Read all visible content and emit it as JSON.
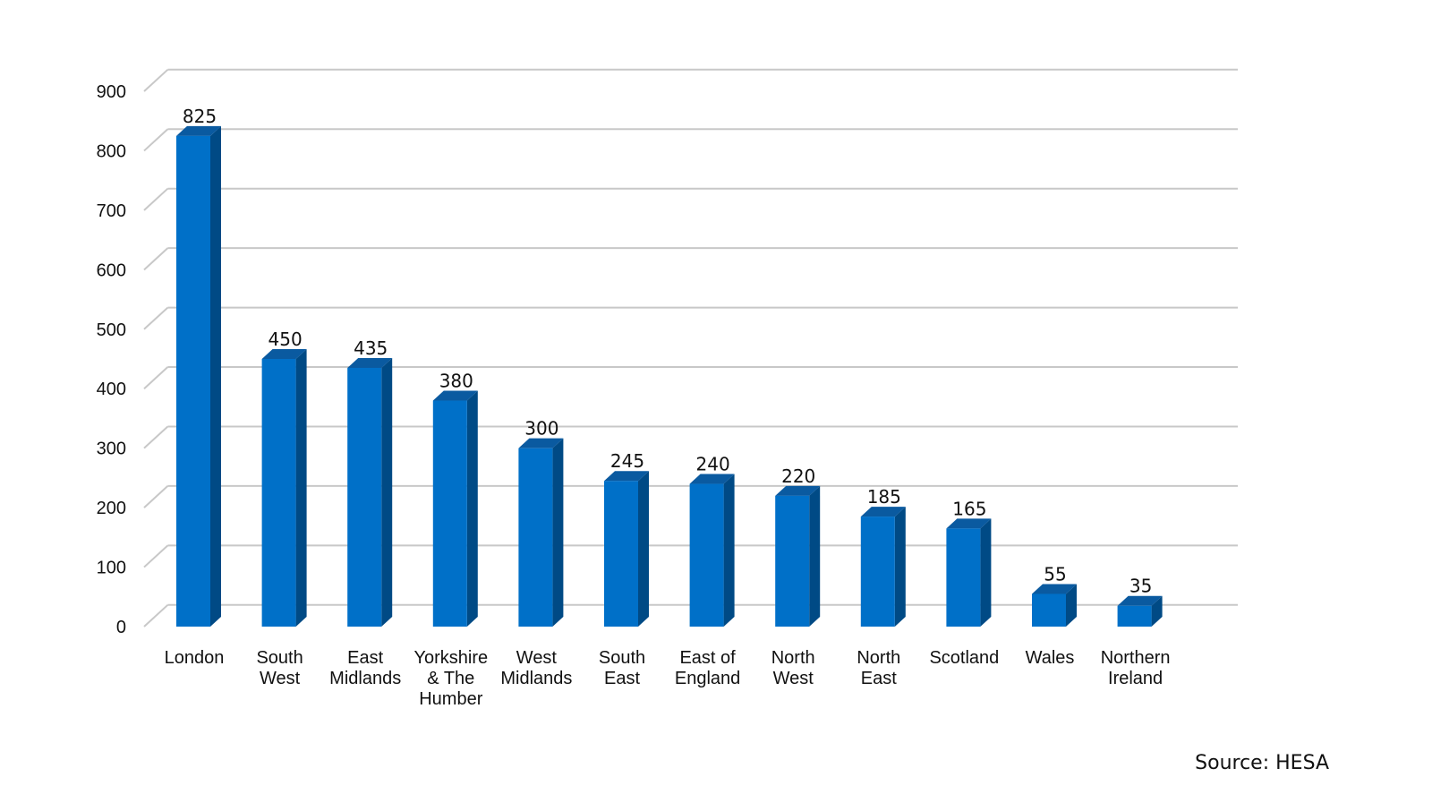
{
  "source_note": "Source: HESA",
  "colors": {
    "bar_front": "#0070c8",
    "bar_side": "#004a85",
    "bar_top": "#0a5aa0",
    "grid": "#c8c8c8"
  },
  "chart_data": {
    "type": "bar",
    "categories": [
      [
        "London"
      ],
      [
        "South",
        "West"
      ],
      [
        "East",
        "Midlands"
      ],
      [
        "Yorkshire",
        "& The",
        "Humber"
      ],
      [
        "West",
        "Midlands"
      ],
      [
        "South",
        "East"
      ],
      [
        "East of",
        "England"
      ],
      [
        "North",
        "West"
      ],
      [
        "North",
        "East"
      ],
      [
        "Scotland"
      ],
      [
        "Wales"
      ],
      [
        "Northern",
        "Ireland"
      ]
    ],
    "values": [
      825,
      450,
      435,
      380,
      300,
      245,
      240,
      220,
      185,
      165,
      55,
      35
    ],
    "y_ticks": [
      0,
      100,
      200,
      300,
      400,
      500,
      600,
      700,
      800,
      900
    ],
    "ylim": [
      0,
      900
    ],
    "grid": true,
    "three_d": true
  }
}
